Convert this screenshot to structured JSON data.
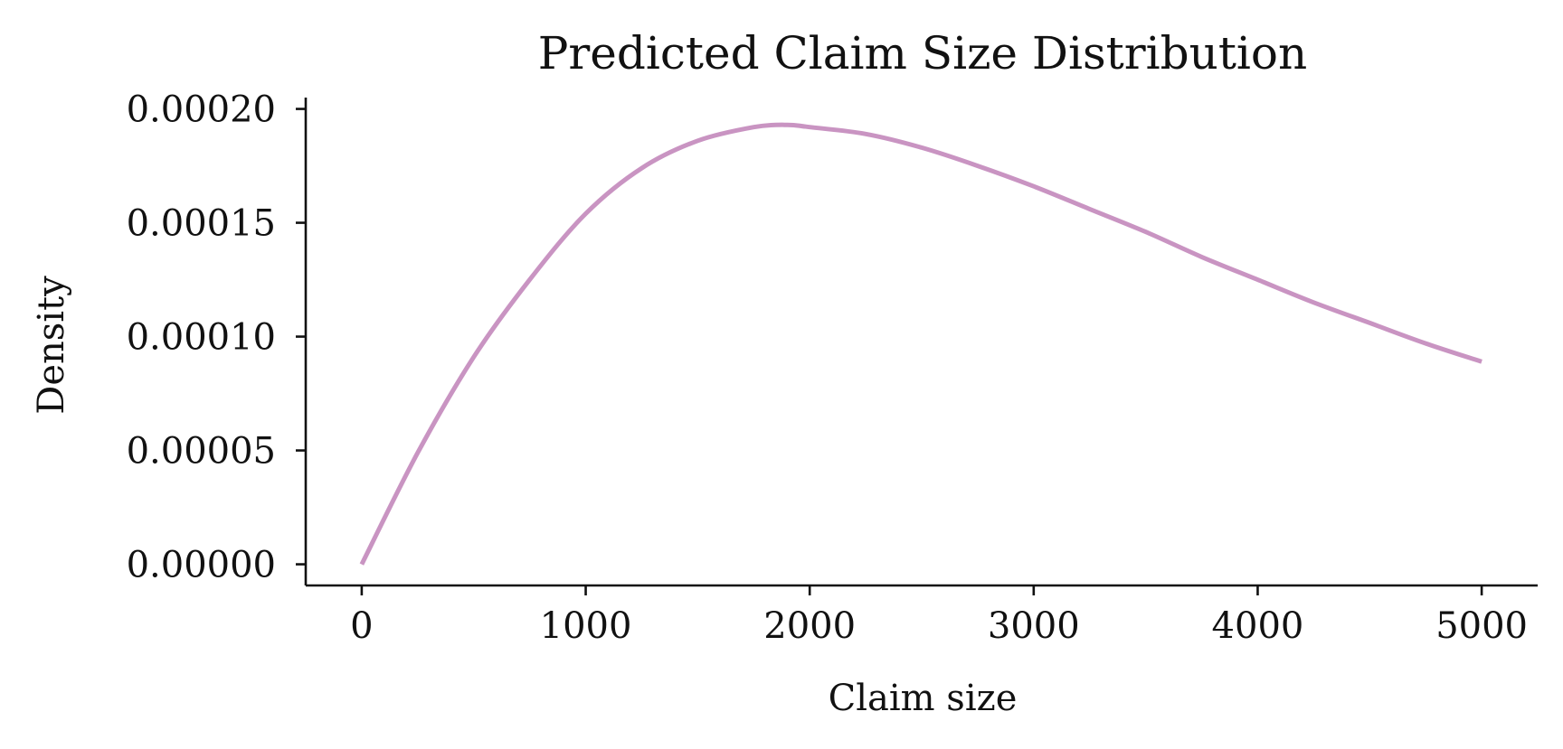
{
  "chart_data": {
    "type": "line",
    "title": "Predicted Claim Size Distribution",
    "xlabel": "Claim size",
    "ylabel": "Density",
    "xlim": [
      -250,
      5250
    ],
    "ylim": [
      -9.3e-06,
      0.000203
    ],
    "x_ticks": [
      0,
      1000,
      2000,
      3000,
      4000,
      5000
    ],
    "x_tick_labels": [
      "0",
      "1000",
      "2000",
      "3000",
      "4000",
      "5000"
    ],
    "y_ticks": [
      0,
      5e-05,
      0.0001,
      0.00015,
      0.0002
    ],
    "y_tick_labels": [
      "0.00000",
      "0.00005",
      "0.00010",
      "0.00015",
      "0.00020"
    ],
    "grid": false,
    "legend": "none",
    "series": [
      {
        "color": "#c994c2",
        "x": [
          0,
          250,
          500,
          750,
          1000,
          1250,
          1500,
          1750,
          1900,
          2000,
          2250,
          2500,
          2750,
          3000,
          3250,
          3500,
          3750,
          4000,
          4250,
          4500,
          4750,
          5000
        ],
        "y": [
          0.0,
          4.9e-05,
          9.1e-05,
          0.000125,
          0.000154,
          0.000174,
          0.000186,
          0.000192,
          0.000193,
          0.000192,
          0.000189,
          0.000183,
          0.000175,
          0.000166,
          0.000156,
          0.000146,
          0.000135,
          0.000125,
          0.000115,
          0.000106,
          9.7e-05,
          8.9e-05
        ]
      }
    ]
  }
}
